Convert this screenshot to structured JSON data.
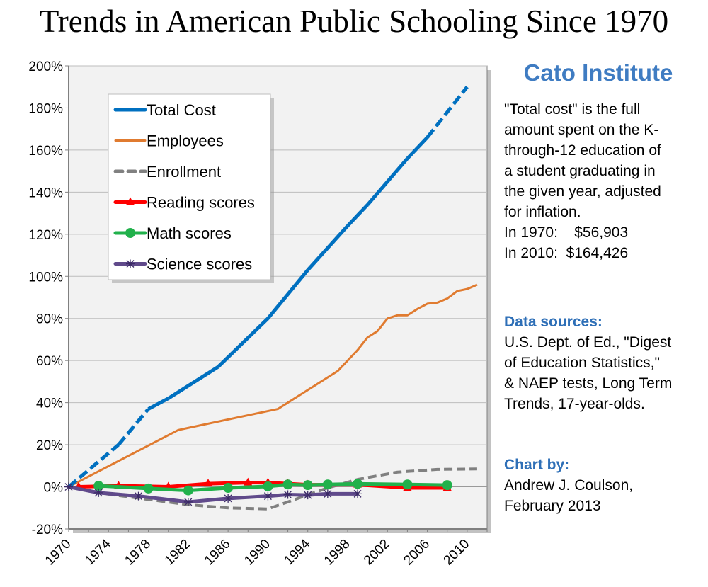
{
  "chart_data": {
    "type": "line",
    "title": "Trends in American Public Schooling Since 1970",
    "xlabel": "",
    "ylabel": "",
    "xlim": [
      1970,
      2012
    ],
    "ylim": [
      -20,
      200
    ],
    "x_ticks": [
      "1970",
      "1974",
      "1978",
      "1982",
      "1986",
      "1990",
      "1994",
      "1998",
      "2002",
      "2006",
      "2010"
    ],
    "y_ticks": [
      "-20%",
      "0%",
      "20%",
      "40%",
      "60%",
      "80%",
      "100%",
      "120%",
      "140%",
      "160%",
      "180%",
      "200%"
    ],
    "grid": true,
    "legend_placement": "top-left",
    "series": [
      {
        "name": "Total Cost",
        "color": "#0070c0",
        "style": "solid",
        "dashed_ranges": [
          [
            1970,
            1978
          ],
          [
            2006,
            2010
          ]
        ],
        "x": [
          1970,
          1975,
          1978,
          1980,
          1985,
          1990,
          1994,
          1998,
          2000,
          2004,
          2006,
          2010
        ],
        "y": [
          0,
          20,
          37,
          42,
          57,
          80,
          103,
          124,
          134,
          156,
          166,
          190
        ]
      },
      {
        "name": "Employees",
        "color": "#e07b30",
        "style": "solid",
        "x": [
          1970,
          1981,
          1991,
          1997,
          1999,
          2000,
          2001,
          2002,
          2003,
          2004,
          2005,
          2006,
          2007,
          2008,
          2009,
          2010,
          2011
        ],
        "y": [
          0,
          27,
          37,
          55,
          65,
          71,
          74,
          80,
          81.5,
          81.5,
          84.5,
          87,
          87.5,
          89.5,
          93,
          94,
          96
        ]
      },
      {
        "name": "Enrollment",
        "color": "#808080",
        "style": "dashed",
        "x": [
          1970,
          1974,
          1978,
          1982,
          1986,
          1990,
          1993,
          1996,
          1999,
          2003,
          2007,
          2011
        ],
        "y": [
          0,
          -3.5,
          -6,
          -8.5,
          -10,
          -10.5,
          -5.5,
          -0.5,
          3.5,
          7,
          8.3,
          8.5
        ]
      },
      {
        "name": "Reading scores",
        "color": "#ff0000",
        "style": "solid",
        "marker": "triangle",
        "x": [
          1971,
          1975,
          1980,
          1984,
          1988,
          1990,
          1992,
          1994,
          1996,
          1999,
          2004,
          2008
        ],
        "y": [
          0,
          0.5,
          0,
          1.5,
          2,
          2,
          1.5,
          1,
          1,
          1,
          -0.5,
          -0.5
        ]
      },
      {
        "name": "Math scores",
        "color": "#21b14b",
        "style": "solid",
        "marker": "circle",
        "x": [
          1973,
          1978,
          1982,
          1986,
          1990,
          1992,
          1994,
          1996,
          1999,
          2004,
          2008
        ],
        "y": [
          0.5,
          -0.8,
          -1.7,
          -0.5,
          0.2,
          1.1,
          0.8,
          1.1,
          1.4,
          1.1,
          0.8
        ]
      },
      {
        "name": "Science scores",
        "color": "#604a8b",
        "style": "solid",
        "marker": "asterisk",
        "x": [
          1970,
          1973,
          1977,
          1982,
          1986,
          1990,
          1992,
          1994,
          1996,
          1999
        ],
        "y": [
          0,
          -2.8,
          -4.4,
          -7.2,
          -5.5,
          -4.4,
          -3.7,
          -3.9,
          -3.3,
          -3.3
        ]
      }
    ]
  },
  "sidebar": {
    "org": "Cato Institute",
    "note_lines": [
      "\"Total cost\" is the full",
      "amount spent on the K-",
      "through-12 education of",
      "a student graduating in",
      "the given year, adjusted",
      "for inflation."
    ],
    "cost_1970": "In 1970:    $56,903",
    "cost_2010": "In 2010:  $164,426",
    "sources_head": "Data sources:",
    "sources_lines": [
      "U.S. Dept. of Ed., \"Digest",
      "of Education Statistics,\"",
      "& NAEP tests, Long Term",
      "Trends, 17-year-olds."
    ],
    "by_head": "Chart by:",
    "by_lines": [
      "Andrew J. Coulson,",
      "February 2013"
    ]
  }
}
